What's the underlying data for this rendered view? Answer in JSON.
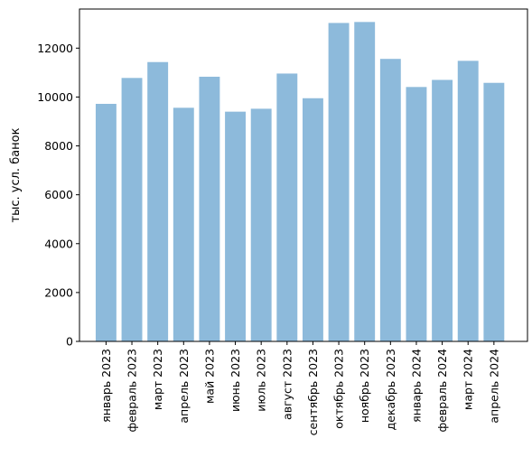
{
  "chart_data": {
    "type": "bar",
    "title": "",
    "xlabel": "",
    "ylabel": "тыс. усл. банок",
    "categories": [
      "январь 2023",
      "февраль 2023",
      "март 2023",
      "апрель 2023",
      "май 2023",
      "июнь 2023",
      "июль 2023",
      "август 2023",
      "сентябрь 2023",
      "октябрь 2023",
      "ноябрь 2023",
      "декабрь 2023",
      "январь 2024",
      "февраль 2024",
      "март 2024",
      "апрель 2024"
    ],
    "values": [
      9720,
      10780,
      11430,
      9560,
      10830,
      9400,
      9520,
      10960,
      9950,
      13030,
      13070,
      11560,
      10410,
      10700,
      11480,
      10580
    ],
    "ylim": [
      0,
      13600
    ],
    "yticks": [
      0,
      2000,
      4000,
      6000,
      8000,
      10000,
      12000
    ],
    "grid": false,
    "legend": "none",
    "bar_color": "#8dbadb"
  }
}
